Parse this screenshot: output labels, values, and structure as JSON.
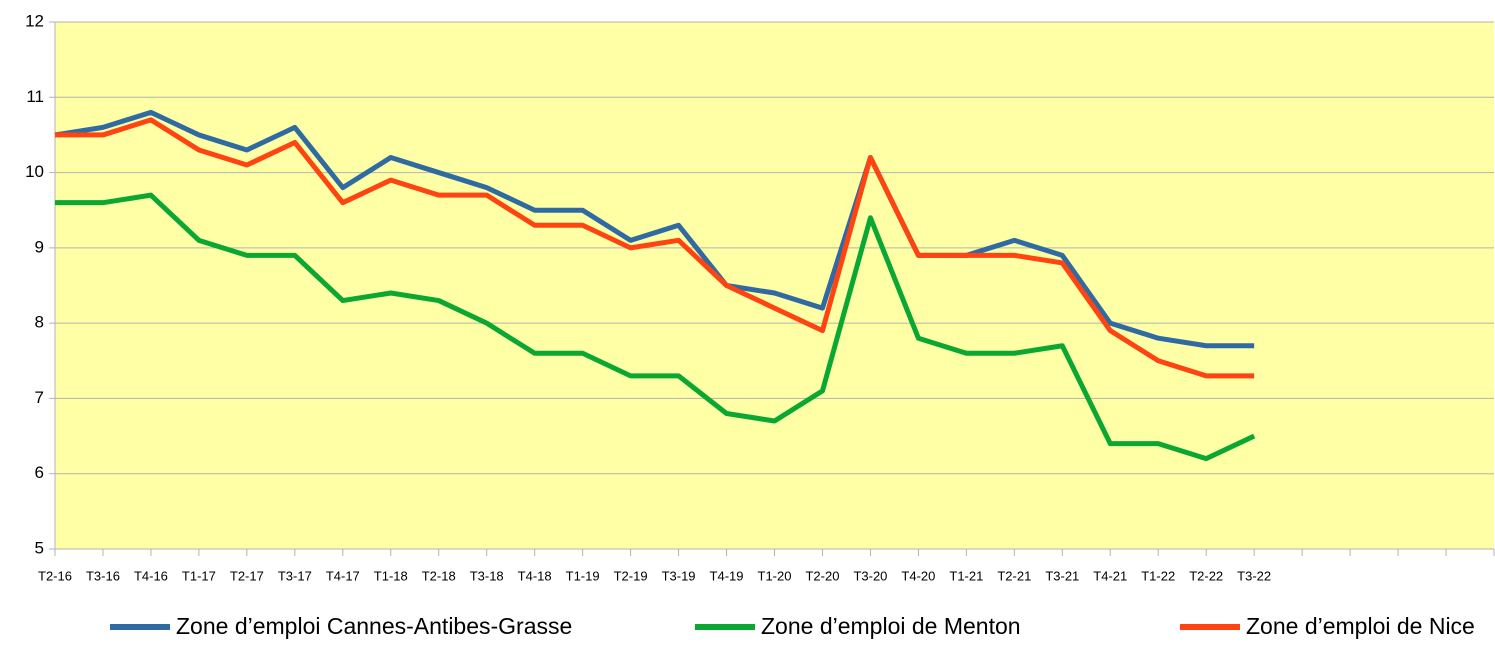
{
  "chart_data": {
    "type": "line",
    "categories": [
      "T2-16",
      "T3-16",
      "T4-16",
      "T1-17",
      "T2-17",
      "T3-17",
      "T4-17",
      "T1-18",
      "T2-18",
      "T3-18",
      "T4-18",
      "T1-19",
      "T2-19",
      "T3-19",
      "T4-19",
      "T1-20",
      "T2-20",
      "T3-20",
      "T4-20",
      "T1-21",
      "T2-21",
      "T3-21",
      "T4-21",
      "T1-22",
      "T2-22",
      "T3-22",
      null,
      null,
      null,
      null,
      null
    ],
    "series": [
      {
        "name": "Zone d’emploi Cannes-Antibes-Grasse",
        "color": "#2f6aa3",
        "values": [
          10.5,
          10.6,
          10.8,
          10.5,
          10.3,
          10.6,
          9.8,
          10.2,
          10.0,
          9.8,
          9.5,
          9.5,
          9.1,
          9.3,
          8.5,
          8.4,
          8.2,
          10.2,
          8.9,
          8.9,
          9.1,
          8.9,
          8.0,
          7.8,
          7.7,
          7.7,
          null,
          null,
          null,
          null,
          null
        ]
      },
      {
        "name": "Zone d’emploi de Menton",
        "color": "#0aa832",
        "values": [
          9.6,
          9.6,
          9.7,
          9.1,
          8.9,
          8.9,
          8.3,
          8.4,
          8.3,
          8.0,
          7.6,
          7.6,
          7.3,
          7.3,
          6.8,
          6.7,
          7.1,
          9.4,
          7.8,
          7.6,
          7.6,
          7.7,
          6.4,
          6.4,
          6.2,
          6.5,
          null,
          null,
          null,
          null,
          null
        ]
      },
      {
        "name": "Zone d’emploi de Nice",
        "color": "#ff4411",
        "values": [
          10.5,
          10.5,
          10.7,
          10.3,
          10.1,
          10.4,
          9.6,
          9.9,
          9.7,
          9.7,
          9.3,
          9.3,
          9.0,
          9.1,
          8.5,
          8.2,
          7.9,
          10.2,
          8.9,
          8.9,
          8.9,
          8.8,
          7.9,
          7.5,
          7.3,
          7.3,
          null,
          null,
          null,
          null,
          null
        ]
      }
    ],
    "ylim": [
      5,
      12
    ],
    "yticks": [
      5,
      6,
      7,
      8,
      9,
      10,
      11,
      12
    ],
    "grid": true,
    "legend": "bottom",
    "background": "#ffffa6"
  }
}
